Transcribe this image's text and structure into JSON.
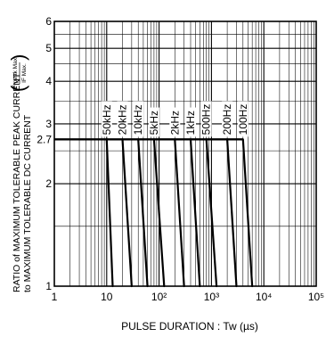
{
  "chart_data": {
    "type": "line",
    "title": "",
    "xlabel": "PULSE DURATION : Tw (µs)",
    "ylabel_line1": "RATIO of MAXIMUM TOLERABLE PEAK CURRENT",
    "ylabel_line2": "to MAXIMUM TOLERABLE DC CURRENT",
    "ylabel_fraction_top": "IF peak Max.",
    "ylabel_fraction_bottom": "IF Max.",
    "x_scale": "log",
    "y_scale": "log",
    "xlim": [
      1,
      100000
    ],
    "ylim": [
      1,
      6
    ],
    "grid": true,
    "x_ticks": [
      {
        "value": 1,
        "label": "1"
      },
      {
        "value": 10,
        "label": "10"
      },
      {
        "value": 100,
        "label": "10²"
      },
      {
        "value": 1000,
        "label": "10³"
      },
      {
        "value": 10000,
        "label": "10⁴"
      },
      {
        "value": 100000,
        "label": "10⁵"
      }
    ],
    "y_ticks": [
      {
        "value": 1,
        "label": "1"
      },
      {
        "value": 2,
        "label": "2"
      },
      {
        "value": 2.7,
        "label": "2.7"
      },
      {
        "value": 3,
        "label": "3"
      },
      {
        "value": 4,
        "label": "4"
      },
      {
        "value": 5,
        "label": "5"
      },
      {
        "value": 6,
        "label": "6"
      }
    ],
    "plateau_value": 2.7,
    "plateau_x_start": 10,
    "series": [
      {
        "name": "50kHz",
        "points": [
          [
            10,
            2.7
          ],
          [
            13,
            1
          ]
        ]
      },
      {
        "name": "20kHz",
        "points": [
          [
            20,
            2.7
          ],
          [
            30,
            1
          ]
        ]
      },
      {
        "name": "10kHz",
        "points": [
          [
            40,
            2.7
          ],
          [
            60,
            1
          ]
        ]
      },
      {
        "name": "5kHz",
        "points": [
          [
            80,
            2.7
          ],
          [
            125,
            1
          ]
        ]
      },
      {
        "name": "2kHz",
        "points": [
          [
            200,
            2.7
          ],
          [
            300,
            1
          ]
        ]
      },
      {
        "name": "1kHz",
        "points": [
          [
            400,
            2.7
          ],
          [
            600,
            1
          ]
        ]
      },
      {
        "name": "500Hz",
        "points": [
          [
            800,
            2.7
          ],
          [
            1250,
            1
          ]
        ]
      },
      {
        "name": "200Hz",
        "points": [
          [
            2000,
            2.7
          ],
          [
            3000,
            1
          ]
        ]
      },
      {
        "name": "100Hz",
        "points": [
          [
            4000,
            2.7
          ],
          [
            6000,
            1
          ]
        ]
      }
    ]
  }
}
